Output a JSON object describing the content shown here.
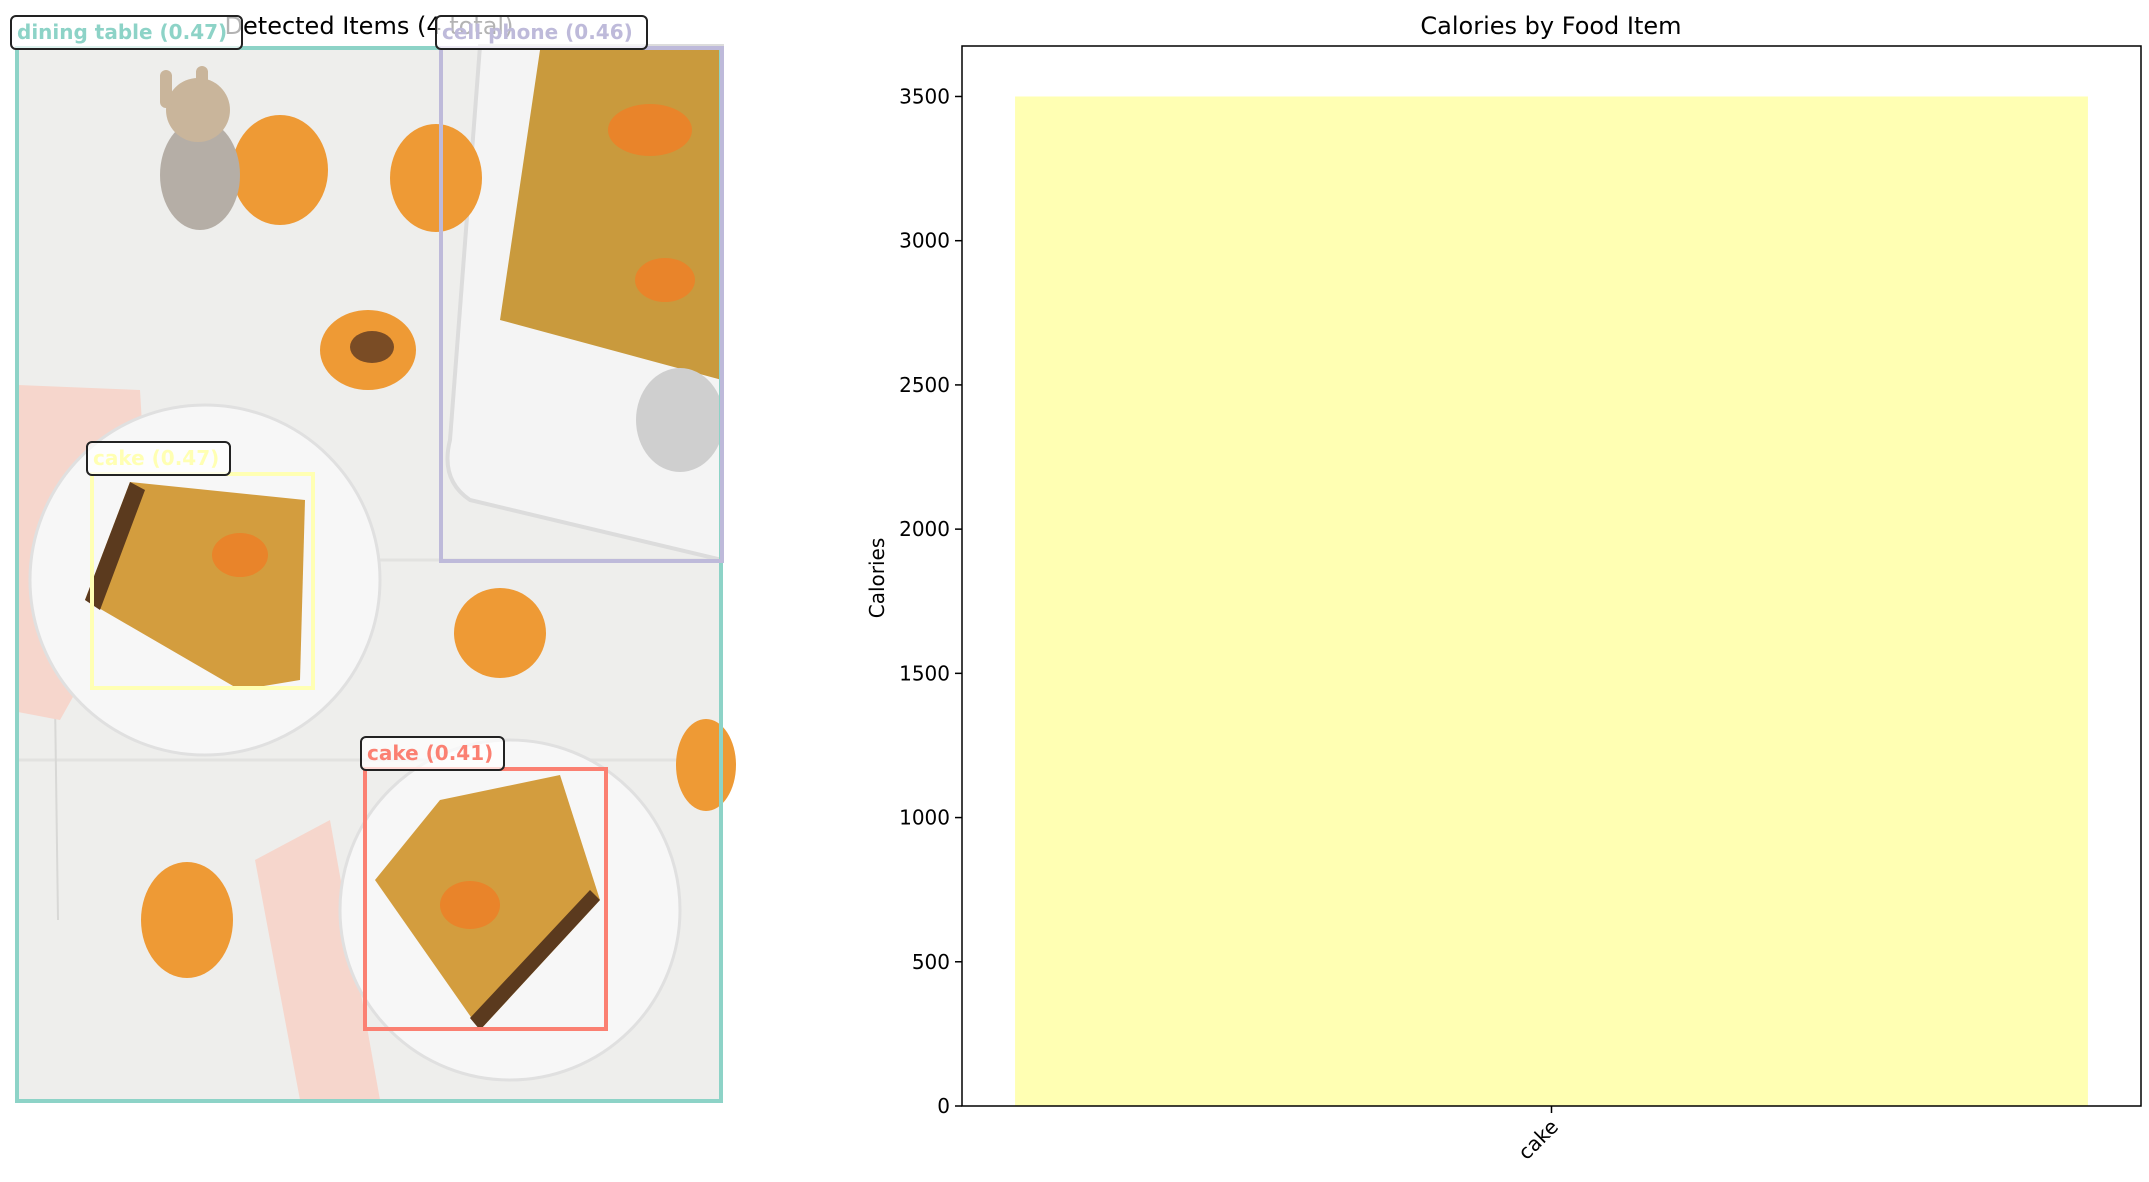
{
  "detection_panel": {
    "title": "Detected Items (4 total)",
    "detections": [
      {
        "label": "dining table (0.47)",
        "color": "#8dd3c7"
      },
      {
        "label": "cell phone (0.46)",
        "color": "#bebada"
      },
      {
        "label": "cake (0.47)",
        "color": "#ffffb3"
      },
      {
        "label": "cake (0.41)",
        "color": "#fb8072"
      }
    ]
  },
  "chart_data": {
    "type": "bar",
    "title": "Calories by Food Item",
    "xlabel": "",
    "ylabel": "Calories",
    "categories": [
      "cake"
    ],
    "values": [
      3500
    ],
    "bar_color": "#ffffb3",
    "ylim": [
      0,
      3675
    ],
    "yticks": [
      0,
      500,
      1000,
      1500,
      2000,
      2500,
      3000,
      3500
    ],
    "grid": false,
    "legend": "none"
  }
}
